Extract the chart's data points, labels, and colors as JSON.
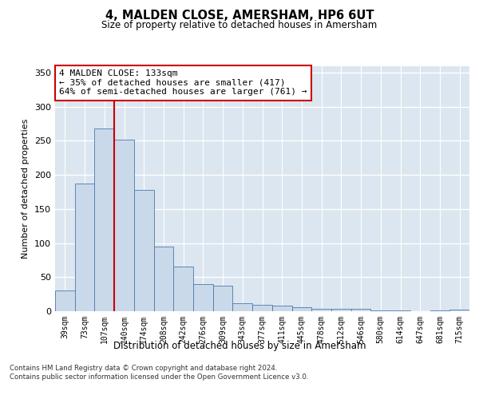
{
  "title": "4, MALDEN CLOSE, AMERSHAM, HP6 6UT",
  "subtitle": "Size of property relative to detached houses in Amersham",
  "xlabel": "Distribution of detached houses by size in Amersham",
  "ylabel": "Number of detached properties",
  "bar_labels": [
    "39sqm",
    "73sqm",
    "107sqm",
    "140sqm",
    "174sqm",
    "208sqm",
    "242sqm",
    "276sqm",
    "309sqm",
    "343sqm",
    "377sqm",
    "411sqm",
    "445sqm",
    "478sqm",
    "512sqm",
    "546sqm",
    "580sqm",
    "614sqm",
    "647sqm",
    "681sqm",
    "715sqm"
  ],
  "bar_values": [
    30,
    187,
    268,
    252,
    178,
    95,
    65,
    40,
    38,
    12,
    9,
    8,
    6,
    4,
    3,
    3,
    1,
    1,
    0,
    1,
    2
  ],
  "bar_color": "#c9d9ea",
  "bar_edge_color": "#4a7aaa",
  "vline_x_index": 2,
  "vline_color": "#cc0000",
  "annotation_text": "4 MALDEN CLOSE: 133sqm\n← 35% of detached houses are smaller (417)\n64% of semi-detached houses are larger (761) →",
  "annotation_box_color": "#ffffff",
  "annotation_box_edge": "#cc0000",
  "ylim": [
    0,
    360
  ],
  "yticks": [
    0,
    50,
    100,
    150,
    200,
    250,
    300,
    350
  ],
  "bg_color": "#dce6f0",
  "grid_color": "#ffffff",
  "footer": "Contains HM Land Registry data © Crown copyright and database right 2024.\nContains public sector information licensed under the Open Government Licence v3.0."
}
